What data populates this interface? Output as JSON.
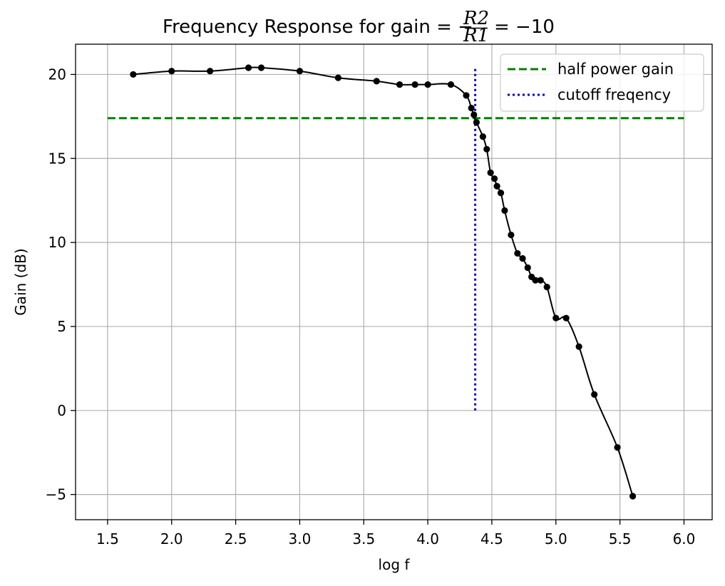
{
  "chart_data": {
    "type": "line",
    "title": {
      "prefix": "Frequency Response for gain = −",
      "frac_num": "R2",
      "frac_den": "R1",
      "suffix": "= −10"
    },
    "xlabel": "log f",
    "ylabel": "Gain (dB)",
    "xlim": [
      1.25,
      6.22
    ],
    "ylim": [
      -6.5,
      21.8
    ],
    "x_ticks": [
      1.5,
      2.0,
      2.5,
      3.0,
      3.5,
      4.0,
      4.5,
      5.0,
      5.5,
      6.0
    ],
    "x_tick_labels": [
      "1.5",
      "2.0",
      "2.5",
      "3.0",
      "3.5",
      "4.0",
      "4.5",
      "5.0",
      "5.5",
      "6.0"
    ],
    "y_ticks": [
      -5,
      0,
      5,
      10,
      15,
      20
    ],
    "y_tick_labels": [
      "−5",
      "0",
      "5",
      "10",
      "15",
      "20"
    ],
    "grid": true,
    "legend_position": "upper-right",
    "series": [
      {
        "style": "line-with-markers",
        "color": "#000000",
        "points": [
          [
            1.7,
            20.0
          ],
          [
            2.0,
            20.2
          ],
          [
            2.3,
            20.2
          ],
          [
            2.6,
            20.4
          ],
          [
            2.7,
            20.4
          ],
          [
            3.0,
            20.2
          ],
          [
            3.3,
            19.8
          ],
          [
            3.6,
            19.6
          ],
          [
            3.78,
            19.4
          ],
          [
            3.9,
            19.4
          ],
          [
            4.0,
            19.4
          ],
          [
            4.18,
            19.4
          ],
          [
            4.3,
            18.75
          ],
          [
            4.34,
            18.0
          ],
          [
            4.36,
            17.6
          ],
          [
            4.38,
            17.15
          ],
          [
            4.43,
            16.3
          ],
          [
            4.46,
            15.55
          ],
          [
            4.49,
            14.15
          ],
          [
            4.52,
            13.8
          ],
          [
            4.54,
            13.35
          ],
          [
            4.57,
            12.95
          ],
          [
            4.6,
            11.9
          ],
          [
            4.65,
            10.45
          ],
          [
            4.7,
            9.35
          ],
          [
            4.74,
            9.05
          ],
          [
            4.78,
            8.5
          ],
          [
            4.81,
            7.95
          ],
          [
            4.84,
            7.75
          ],
          [
            4.88,
            7.75
          ],
          [
            4.93,
            7.35
          ],
          [
            5.0,
            5.5
          ],
          [
            5.08,
            5.5
          ],
          [
            5.18,
            3.8
          ],
          [
            5.3,
            0.95
          ],
          [
            5.48,
            -2.2
          ],
          [
            5.6,
            -5.1
          ]
        ]
      },
      {
        "name": "half power gain",
        "style": "dashed",
        "color": "#008000",
        "points": [
          [
            1.5,
            17.4
          ],
          [
            6.0,
            17.4
          ]
        ]
      },
      {
        "name": "cutoff freqency",
        "style": "dotted",
        "color": "#0000cc",
        "points": [
          [
            4.37,
            0.0
          ],
          [
            4.37,
            20.4
          ]
        ]
      }
    ]
  }
}
